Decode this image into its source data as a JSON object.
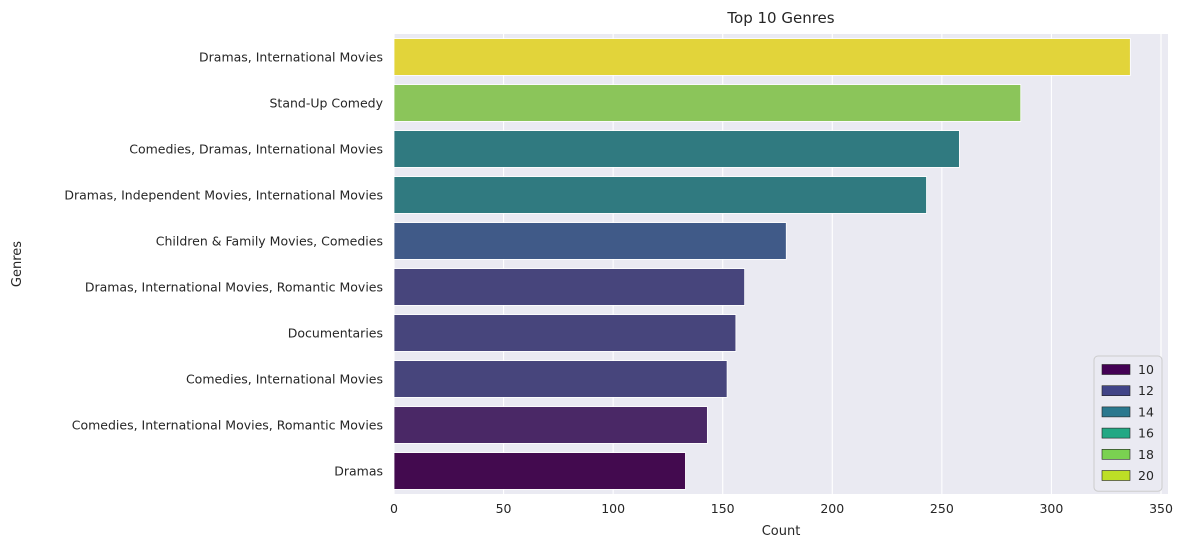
{
  "chart_data": {
    "type": "bar",
    "orientation": "horizontal",
    "title": "Top 10 Genres",
    "xlabel": "Count",
    "ylabel": "Genres",
    "xlim": [
      0,
      350
    ],
    "xticks": [
      0,
      50,
      100,
      150,
      200,
      250,
      300,
      350
    ],
    "grid": true,
    "categories": [
      "Dramas, International Movies",
      "Stand-Up Comedy",
      "Comedies, Dramas, International Movies",
      "Dramas, Independent Movies, International Movies",
      "Children & Family Movies, Comedies",
      "Dramas, International Movies, Romantic Movies",
      "Documentaries",
      "Comedies, International Movies",
      "Comedies, International Movies, Romantic Movies",
      "Dramas"
    ],
    "values": [
      336,
      286,
      258,
      243,
      179,
      160,
      156,
      152,
      143,
      133
    ],
    "colors": [
      "#e2d43a",
      "#8bc55a",
      "#307a80",
      "#307a80",
      "#405a88",
      "#47457c",
      "#47457c",
      "#47457c",
      "#4a2866",
      "#430a4f"
    ],
    "legend": {
      "placement": "lower-right",
      "entries": [
        {
          "label": "10",
          "color": "#440154"
        },
        {
          "label": "12",
          "color": "#414487"
        },
        {
          "label": "14",
          "color": "#2a788e"
        },
        {
          "label": "16",
          "color": "#22a884"
        },
        {
          "label": "18",
          "color": "#7ad151"
        },
        {
          "label": "20",
          "color": "#bddf26"
        }
      ]
    }
  },
  "colors": {
    "plot_background": "#eaeaf2",
    "grid": "#ffffff",
    "text": "#262626"
  }
}
